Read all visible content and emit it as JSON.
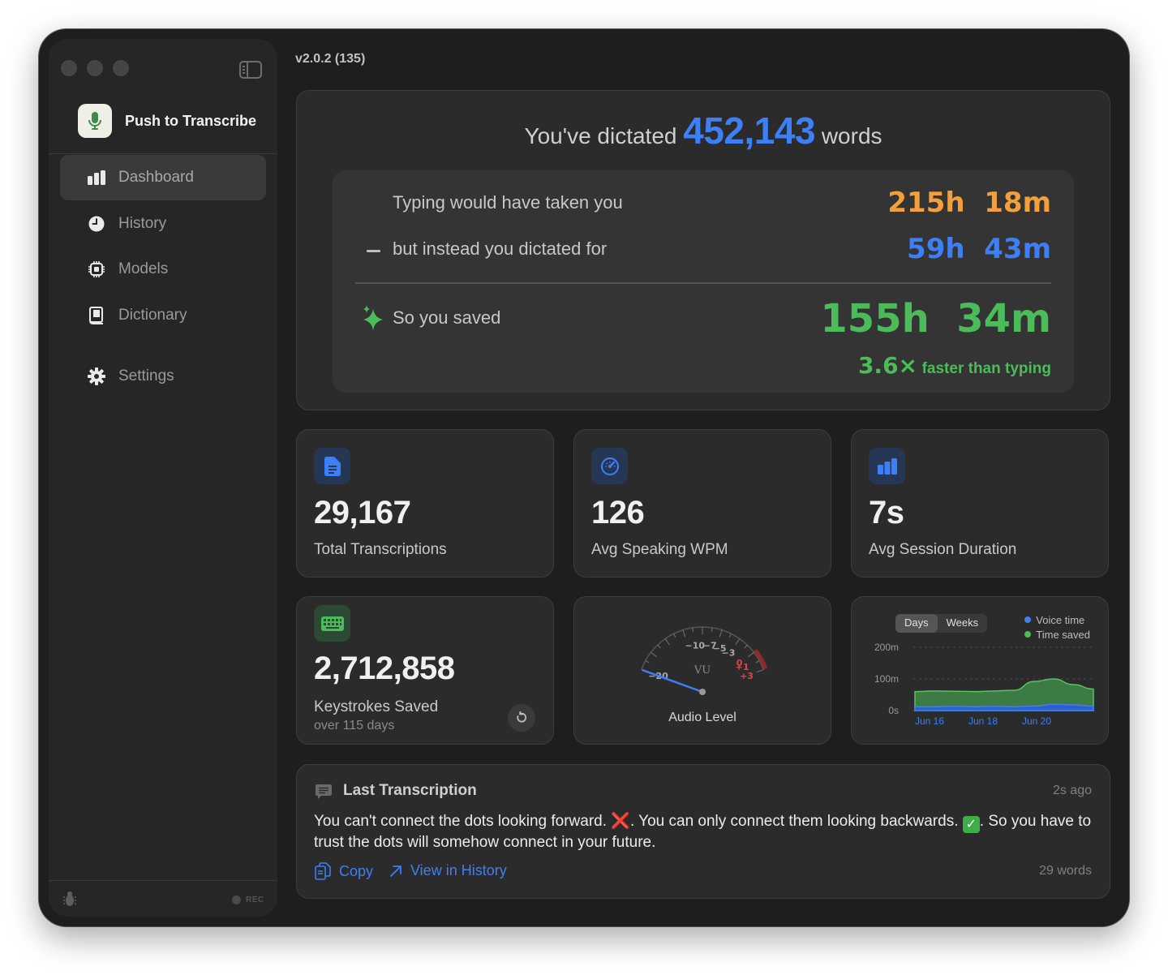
{
  "app": {
    "name": "Push to Transcribe",
    "version": "v2.0.2 (135)",
    "rec_label": "REC"
  },
  "sidebar": {
    "items": [
      {
        "label": "Dashboard",
        "icon": "bar-chart-icon",
        "active": true
      },
      {
        "label": "History",
        "icon": "clock-icon",
        "active": false
      },
      {
        "label": "Models",
        "icon": "chip-icon",
        "active": false
      },
      {
        "label": "Dictionary",
        "icon": "book-icon",
        "active": false
      },
      {
        "label": "Settings",
        "icon": "gear-icon",
        "active": false
      }
    ]
  },
  "hero": {
    "prefix": "You've dictated",
    "words": "452,143",
    "suffix": "words",
    "typing_label": "Typing would have taken you",
    "typing_h": "215h",
    "typing_m": "18m",
    "dictated_label": "but instead you dictated for",
    "dictated_h": "59h",
    "dictated_m": "43m",
    "saved_label": "So you saved",
    "saved_h": "155h",
    "saved_m": "34m",
    "multiplier": "3.6×",
    "faster_label": "faster than typing"
  },
  "stats": [
    {
      "value": "29,167",
      "label": "Total Transcriptions",
      "icon": "document-icon"
    },
    {
      "value": "126",
      "label": "Avg Speaking WPM",
      "icon": "speedometer-icon"
    },
    {
      "value": "7s",
      "label": "Avg Session Duration",
      "icon": "bar-chart-icon"
    }
  ],
  "keystrokes": {
    "value": "2,712,858",
    "label": "Keystrokes Saved",
    "sub": "over 115 days",
    "icon": "keyboard-icon"
  },
  "meter": {
    "label": "Audio Level",
    "vu_label": "VU",
    "ticks": [
      "−20",
      "−10",
      "−7",
      "−5",
      "−3",
      "0",
      "+1",
      "+3"
    ],
    "level_db": -20
  },
  "chart_data": {
    "type": "area",
    "tabs": [
      "Days",
      "Weeks"
    ],
    "active_tab": "Days",
    "y_ticks": [
      "200m",
      "100m",
      "0s"
    ],
    "x_ticks": [
      "Jun 16",
      "Jun 18",
      "Jun 20"
    ],
    "ylim": [
      0,
      200
    ],
    "legend_placement": "top-right",
    "series": [
      {
        "name": "Voice time",
        "color": "#3d7ff6",
        "values": [
          12,
          12,
          13,
          12,
          13,
          12,
          14,
          20,
          18,
          14
        ]
      },
      {
        "name": "Time saved",
        "color": "#4cbb5a",
        "values": [
          60,
          62,
          61,
          60,
          62,
          64,
          92,
          100,
          82,
          68
        ]
      }
    ]
  },
  "last": {
    "title": "Last Transcription",
    "time": "2s ago",
    "text_a": "You can't connect the dots looking forward. ",
    "emoji_a": "❌",
    "text_b": ". You can only connect them looking backwards. ",
    "emoji_b": "✓",
    "text_c": ". So you have to trust the dots will somehow connect in your future.",
    "copy_label": "Copy",
    "view_label": "View in History",
    "word_count": "29 words"
  },
  "colors": {
    "accent_blue": "#3d7ff6",
    "accent_orange": "#f3a03c",
    "accent_green": "#4cbb5a"
  }
}
